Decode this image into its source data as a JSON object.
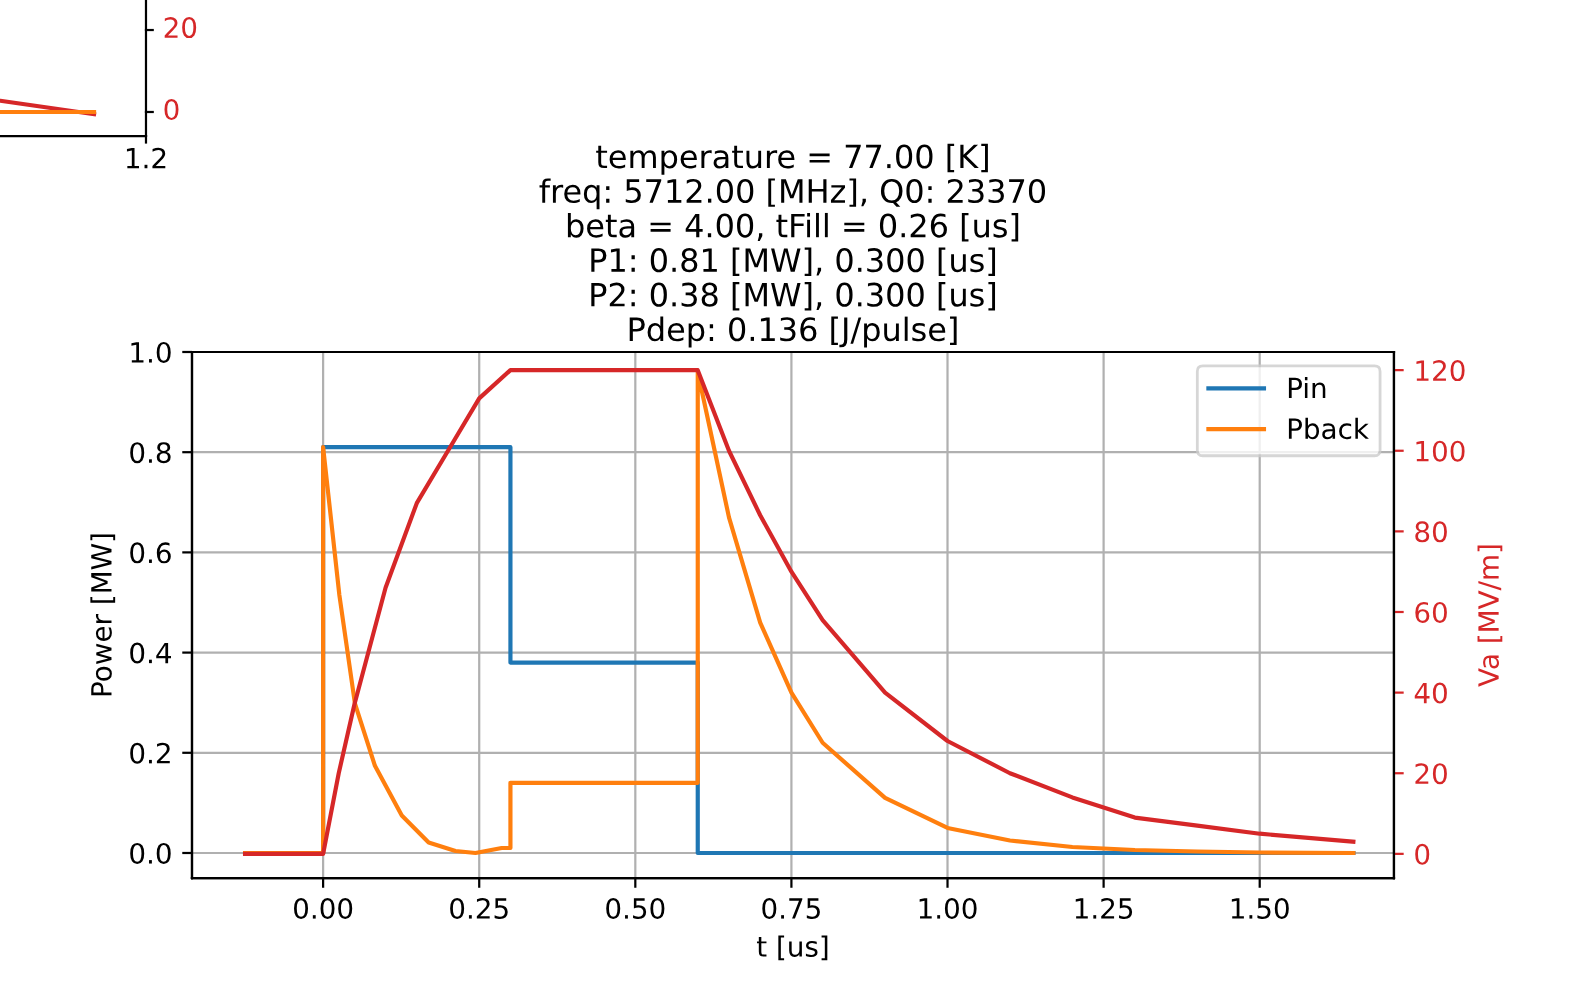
{
  "chart_data": [
    {
      "type": "other",
      "annotations": [
        "20",
        "0",
        "1.2"
      ]
    },
    {
      "type": "line",
      "title": "temperature = 77.00 [K]\nfreq: 5712.00 [MHz], Q0: 23370\nbeta = 4.00, tFill = 0.26 [us]\nP1: 0.81 [MW], 0.300 [us]\nP2: 0.38 [MW], 0.300 [us]\nPdep: 0.136 [J/pulse]",
      "xlabel": "t [us]",
      "ylabel": "Power [MW]",
      "y2label": "Va [MV/m]",
      "xlim": [
        -0.21,
        1.715
      ],
      "ylim": [
        -0.05,
        1.0
      ],
      "y2lim": [
        -6,
        124.5
      ],
      "xticks": [
        {
          "value": 0,
          "label": "0.00"
        },
        {
          "value": 0.25,
          "label": "0.25"
        },
        {
          "value": 0.5,
          "label": "0.50"
        },
        {
          "value": 0.75,
          "label": "0.75"
        },
        {
          "value": 1.0,
          "label": "1.00"
        },
        {
          "value": 1.25,
          "label": "1.25"
        },
        {
          "value": 1.5,
          "label": "1.50"
        }
      ],
      "yticks": [
        {
          "value": 0,
          "label": "0.0"
        },
        {
          "value": 0.2,
          "label": "0.2"
        },
        {
          "value": 0.4,
          "label": "0.4"
        },
        {
          "value": 0.6,
          "label": "0.6"
        },
        {
          "value": 0.8,
          "label": "0.8"
        },
        {
          "value": 1.0,
          "label": "1.0"
        }
      ],
      "y2ticks": [
        0,
        20,
        40,
        60,
        80,
        100,
        120
      ],
      "grid": true,
      "legend": "top right",
      "marker": "none",
      "line_style": "solid",
      "series": [
        {
          "name": "Pin",
          "color": "#1f77b4",
          "x": [
            -0.125,
            0,
            0,
            0.3,
            0.3,
            0.6,
            0.6,
            1.65
          ],
          "values": [
            0,
            0,
            0.81,
            0.81,
            0.38,
            0.38,
            0,
            0
          ]
        },
        {
          "name": "Pback",
          "color": "#ff7f0e",
          "x": [
            -0.125,
            0,
            0,
            0.026,
            0.051,
            0.083,
            0.126,
            0.169,
            0.212,
            0.244,
            0.286,
            0.3,
            0.3,
            0.6,
            0.6,
            0.65,
            0.7,
            0.75,
            0.8,
            0.9,
            1.0,
            1.1,
            1.2,
            1.3,
            1.4,
            1.5,
            1.65
          ],
          "values": [
            0,
            0,
            0.81,
            0.515,
            0.298,
            0.174,
            0.075,
            0.021,
            0.004,
            0,
            0.01,
            0.01,
            0.14,
            0.14,
            0.96,
            0.67,
            0.46,
            0.32,
            0.22,
            0.11,
            0.05,
            0.025,
            0.012,
            0.006,
            0.003,
            0.001,
            0
          ]
        },
        {
          "color": "#d62728",
          "axis": "y2",
          "x": [
            -0.125,
            0,
            0.025,
            0.05,
            0.1,
            0.15,
            0.2,
            0.25,
            0.3,
            0.6,
            0.65,
            0.7,
            0.75,
            0.8,
            0.9,
            1.0,
            1.1,
            1.2,
            1.3,
            1.4,
            1.5,
            1.65
          ],
          "values": [
            0,
            0,
            20,
            37,
            66,
            87,
            100,
            113,
            120,
            120,
            100,
            84,
            70,
            58,
            40,
            28,
            20,
            14,
            9,
            7,
            5,
            3
          ]
        }
      ]
    }
  ]
}
